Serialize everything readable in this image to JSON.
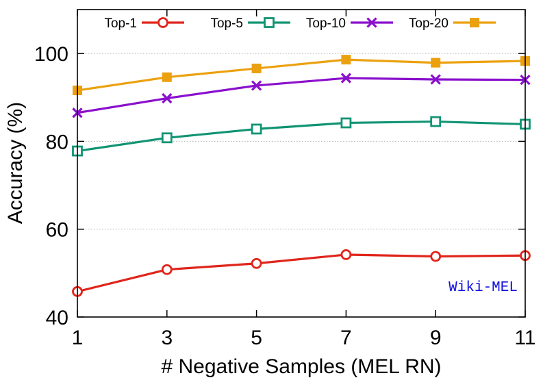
{
  "chart_data": {
    "type": "line",
    "title": "",
    "xlabel": "# Negative Samples (MEL RN)",
    "ylabel": "Accuracy (%)",
    "x": [
      1,
      3,
      5,
      7,
      9,
      11
    ],
    "xlim": [
      1,
      11
    ],
    "ylim": [
      40,
      110
    ],
    "xticks": [
      1,
      3,
      5,
      7,
      9,
      11
    ],
    "yticks": [
      40,
      60,
      80,
      100
    ],
    "grid": "horizontal dotted",
    "legend_position": "top",
    "annotation": {
      "text": "Wiki-MEL",
      "color": "#1010e0"
    },
    "series": [
      {
        "name": "Top-1",
        "color": "#e0251b",
        "marker": "circle",
        "values": [
          45.8,
          50.8,
          52.2,
          54.2,
          53.8,
          54.0
        ]
      },
      {
        "name": "Top-5",
        "color": "#119474",
        "marker": "open-square",
        "values": [
          77.8,
          80.8,
          82.8,
          84.2,
          84.5,
          83.9
        ]
      },
      {
        "name": "Top-10",
        "color": "#8a10cc",
        "marker": "cross",
        "values": [
          86.5,
          89.8,
          92.7,
          94.4,
          94.1,
          94.0
        ]
      },
      {
        "name": "Top-20",
        "color": "#eba10f",
        "marker": "filled-square",
        "values": [
          91.6,
          94.6,
          96.6,
          98.6,
          97.9,
          98.3
        ]
      }
    ]
  }
}
